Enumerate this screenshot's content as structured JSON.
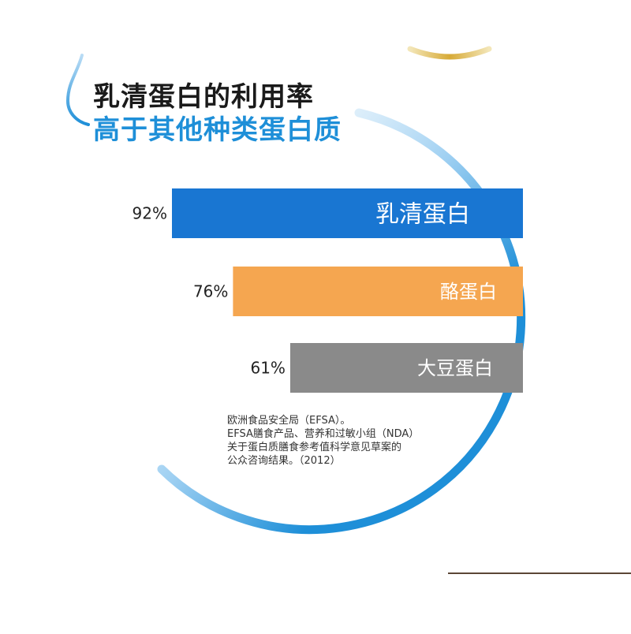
{
  "title": {
    "line1": "乳清蛋白的利用率",
    "line2": "高于其他种类蛋白质"
  },
  "colors": {
    "accent_blue": "#1e8fd8",
    "title_dark": "#1a1a1a",
    "casein_orange": "#f5a650",
    "soy_gray": "#8a8a8a"
  },
  "chart_data": {
    "type": "bar",
    "orientation": "horizontal",
    "categories": [
      "乳清蛋白",
      "酪蛋白",
      "大豆蛋白"
    ],
    "values": [
      92,
      76,
      61
    ],
    "value_labels": [
      "92%",
      "76%",
      "61%"
    ],
    "colors": [
      "#1976d2",
      "#f5a650",
      "#8a8a8a"
    ],
    "xlim": [
      0,
      100
    ],
    "grid": false,
    "title": "乳清蛋白的利用率高于其他种类蛋白质"
  },
  "source": {
    "lines": [
      "欧洲食品安全局（EFSA）。",
      "EFSA膳食产品、营养和过敏小组（NDA）",
      "关于蛋白质膳食参考值科学意见草案的",
      "公众咨询结果。（2012）"
    ]
  }
}
